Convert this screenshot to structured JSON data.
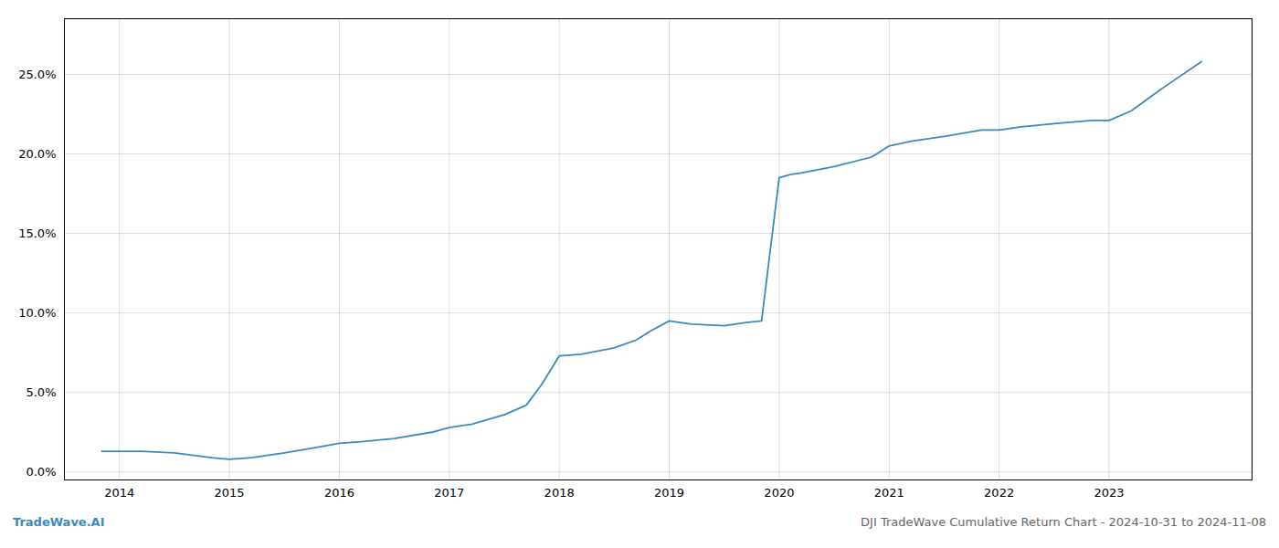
{
  "chart_data": {
    "type": "line",
    "title": "DJI TradeWave Cumulative Return Chart - 2024-10-31 to 2024-11-08",
    "annotations": [
      "TradeWave.AI"
    ],
    "x": [
      2013.84,
      2014.0,
      2014.2,
      2014.5,
      2014.84,
      2015.0,
      2015.2,
      2015.5,
      2015.84,
      2016.0,
      2016.2,
      2016.5,
      2016.84,
      2017.0,
      2017.2,
      2017.5,
      2017.7,
      2017.84,
      2018.0,
      2018.2,
      2018.5,
      2018.7,
      2018.84,
      2019.0,
      2019.2,
      2019.5,
      2019.7,
      2019.84,
      2020.0,
      2020.1,
      2020.2,
      2020.5,
      2020.84,
      2021.0,
      2021.2,
      2021.5,
      2021.84,
      2022.0,
      2022.2,
      2022.5,
      2022.84,
      2023.0,
      2023.2,
      2023.5,
      2023.84
    ],
    "values": [
      0.013,
      0.013,
      0.013,
      0.012,
      0.009,
      0.008,
      0.009,
      0.012,
      0.016,
      0.018,
      0.019,
      0.021,
      0.025,
      0.028,
      0.03,
      0.036,
      0.042,
      0.055,
      0.073,
      0.074,
      0.078,
      0.083,
      0.089,
      0.095,
      0.093,
      0.092,
      0.094,
      0.095,
      0.185,
      0.187,
      0.188,
      0.192,
      0.198,
      0.205,
      0.208,
      0.211,
      0.215,
      0.215,
      0.217,
      0.219,
      0.221,
      0.221,
      0.227,
      0.242,
      0.258
    ],
    "color": "#3a8abf",
    "xlim": [
      2013.5,
      2024.3
    ],
    "xticks": [
      2014,
      2015,
      2016,
      2017,
      2018,
      2019,
      2020,
      2021,
      2022,
      2023
    ],
    "ylim": [
      -0.005,
      0.285
    ],
    "yticks": [
      {
        "value": 0.0,
        "label": "0.0%"
      },
      {
        "value": 0.05,
        "label": "5.0%"
      },
      {
        "value": 0.1,
        "label": "10.0%"
      },
      {
        "value": 0.15,
        "label": "15.0%"
      },
      {
        "value": 0.2,
        "label": "20.0%"
      },
      {
        "value": 0.25,
        "label": "25.0%"
      }
    ],
    "grid": true
  }
}
